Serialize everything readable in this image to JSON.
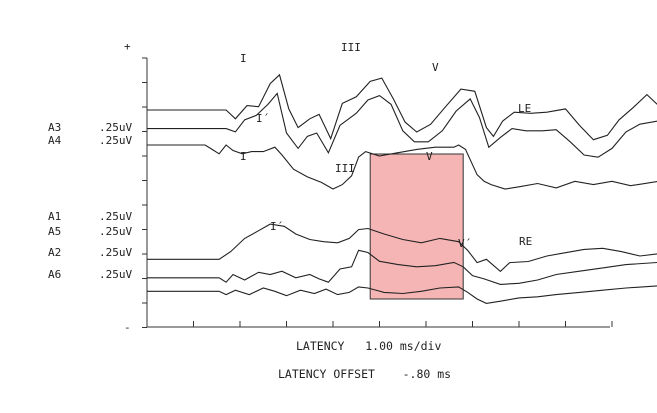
{
  "chart_data": {
    "type": "line",
    "title": "",
    "xlabel": "LATENCY   1.00 ms/div",
    "offset_label": "LATENCY OFFSET    -.80 ms",
    "y_top_marker": "+",
    "y_bottom_marker": "-",
    "x_divisions": 10,
    "x_unit_per_div_ms": 1.0,
    "latency_offset_ms": -0.8,
    "channels": [
      {
        "name": "A3",
        "scale": ".25uV"
      },
      {
        "name": "A4",
        "scale": ".25uV"
      },
      {
        "name": "A1",
        "scale": ".25uV"
      },
      {
        "name": "A5",
        "scale": ".25uV"
      },
      {
        "name": "A2",
        "scale": ".25uV"
      },
      {
        "name": "A6",
        "scale": ".25uV"
      }
    ],
    "group_labels": [
      {
        "text": "LE",
        "group": "upper"
      },
      {
        "text": "RE",
        "group": "lower"
      }
    ],
    "peak_labels_upper": [
      "I",
      "I´",
      "III",
      "V"
    ],
    "peak_labels_lower": [
      "I",
      "I´",
      "III",
      "V",
      "V´"
    ],
    "highlight_ms": [
      4.0,
      6.0
    ],
    "highlight_color": "#f4a3a3",
    "series": [
      {
        "values": [
          [
            -0.8,
            0
          ],
          [
            0.5,
            0
          ],
          [
            0.9,
            0
          ],
          [
            1.1,
            -0.8
          ],
          [
            1.35,
            0.4
          ],
          [
            1.6,
            0.3
          ],
          [
            1.85,
            2.4
          ],
          [
            2.05,
            3.2
          ],
          [
            2.25,
            0.1
          ],
          [
            2.45,
            -1.6
          ],
          [
            2.7,
            -0.8
          ],
          [
            2.9,
            -0.4
          ],
          [
            3.15,
            -2.6
          ],
          [
            3.4,
            0.6
          ],
          [
            3.7,
            1.2
          ],
          [
            4.0,
            2.6
          ],
          [
            4.25,
            2.9
          ],
          [
            4.5,
            1.0
          ],
          [
            4.75,
            -1.1
          ],
          [
            5.0,
            -2.0
          ],
          [
            5.3,
            -1.3
          ],
          [
            5.6,
            0.2
          ],
          [
            5.95,
            1.9
          ],
          [
            6.25,
            1.7
          ],
          [
            6.5,
            -1.6
          ],
          [
            6.65,
            -2.4
          ],
          [
            6.85,
            -1.0
          ],
          [
            7.1,
            -0.2
          ],
          [
            7.45,
            -0.3
          ],
          [
            7.8,
            -0.2
          ],
          [
            8.2,
            0.1
          ],
          [
            8.5,
            -1.4
          ],
          [
            8.8,
            -2.7
          ],
          [
            9.1,
            -2.3
          ],
          [
            9.35,
            -0.9
          ],
          [
            9.65,
            0.2
          ],
          [
            9.95,
            1.4
          ],
          [
            10.2,
            0.4
          ]
        ]
      },
      {
        "values": [
          [
            -0.8,
            -0.6
          ],
          [
            0.5,
            -0.6
          ],
          [
            0.9,
            -0.6
          ],
          [
            1.1,
            -0.9
          ],
          [
            1.3,
            0.2
          ],
          [
            1.55,
            0.6
          ],
          [
            1.8,
            1.6
          ],
          [
            2.0,
            2.6
          ],
          [
            2.2,
            -1.0
          ],
          [
            2.45,
            -2.4
          ],
          [
            2.65,
            -1.3
          ],
          [
            2.85,
            -1.0
          ],
          [
            3.1,
            -2.8
          ],
          [
            3.35,
            -0.3
          ],
          [
            3.7,
            0.8
          ],
          [
            3.95,
            2.0
          ],
          [
            4.2,
            2.4
          ],
          [
            4.45,
            1.6
          ],
          [
            4.7,
            -0.8
          ],
          [
            4.95,
            -1.8
          ],
          [
            5.25,
            -1.8
          ],
          [
            5.55,
            -0.8
          ],
          [
            5.85,
            1.0
          ],
          [
            6.15,
            2.1
          ],
          [
            6.35,
            0.4
          ],
          [
            6.55,
            -2.3
          ],
          [
            6.8,
            -1.4
          ],
          [
            7.05,
            -0.6
          ],
          [
            7.35,
            -0.8
          ],
          [
            7.7,
            -0.8
          ],
          [
            8.0,
            -0.7
          ],
          [
            8.3,
            -1.8
          ],
          [
            8.6,
            -3.0
          ],
          [
            8.9,
            -3.2
          ],
          [
            9.2,
            -2.4
          ],
          [
            9.5,
            -0.9
          ],
          [
            9.8,
            -0.2
          ],
          [
            10.2,
            0.1
          ]
        ]
      },
      {
        "values": [
          [
            -0.8,
            3.0
          ],
          [
            0.45,
            3.0
          ],
          [
            0.6,
            2.6
          ],
          [
            0.75,
            2.2
          ],
          [
            0.9,
            3.0
          ],
          [
            1.05,
            2.5
          ],
          [
            1.25,
            2.2
          ],
          [
            1.45,
            2.4
          ],
          [
            1.7,
            2.4
          ],
          [
            1.95,
            2.8
          ],
          [
            2.1,
            2.1
          ],
          [
            2.35,
            0.8
          ],
          [
            2.65,
            0.1
          ],
          [
            2.95,
            -0.4
          ],
          [
            3.2,
            -1.0
          ],
          [
            3.4,
            -0.6
          ],
          [
            3.6,
            0.2
          ],
          [
            3.75,
            1.9
          ],
          [
            3.9,
            2.4
          ],
          [
            4.2,
            2.0
          ],
          [
            4.6,
            2.3
          ],
          [
            5.0,
            2.6
          ],
          [
            5.4,
            2.8
          ],
          [
            5.8,
            2.8
          ],
          [
            5.9,
            3.0
          ],
          [
            6.05,
            2.6
          ],
          [
            6.3,
            0.3
          ],
          [
            6.45,
            -0.3
          ],
          [
            6.6,
            -0.6
          ],
          [
            6.9,
            -1.0
          ],
          [
            7.2,
            -0.8
          ],
          [
            7.6,
            -0.5
          ],
          [
            8.0,
            -0.9
          ],
          [
            8.4,
            -0.3
          ],
          [
            8.8,
            -0.6
          ],
          [
            9.2,
            -0.3
          ],
          [
            9.6,
            -0.7
          ],
          [
            10.2,
            -0.3
          ]
        ]
      },
      {
        "values": [
          [
            -0.8,
            -1.3
          ],
          [
            0.45,
            -1.3
          ],
          [
            0.75,
            -1.3
          ],
          [
            1.0,
            -0.6
          ],
          [
            1.3,
            0.6
          ],
          [
            1.6,
            1.3
          ],
          [
            1.85,
            1.9
          ],
          [
            2.15,
            1.7
          ],
          [
            2.4,
            1.0
          ],
          [
            2.7,
            0.5
          ],
          [
            3.0,
            0.3
          ],
          [
            3.3,
            0.2
          ],
          [
            3.55,
            0.6
          ],
          [
            3.75,
            1.4
          ],
          [
            3.95,
            1.5
          ],
          [
            4.3,
            1.0
          ],
          [
            4.7,
            0.5
          ],
          [
            5.1,
            0.2
          ],
          [
            5.5,
            0.6
          ],
          [
            5.9,
            0.3
          ],
          [
            6.1,
            -0.5
          ],
          [
            6.3,
            -1.6
          ],
          [
            6.5,
            -1.3
          ],
          [
            6.8,
            -2.4
          ],
          [
            7.0,
            -1.6
          ],
          [
            7.4,
            -1.5
          ],
          [
            7.8,
            -1.0
          ],
          [
            8.2,
            -0.7
          ],
          [
            8.6,
            -0.4
          ],
          [
            9.0,
            -0.3
          ],
          [
            9.4,
            -0.6
          ],
          [
            9.8,
            -1.0
          ],
          [
            10.2,
            -0.8
          ]
        ]
      },
      {
        "values": [
          [
            -0.8,
            -1.8
          ],
          [
            0.45,
            -1.8
          ],
          [
            0.75,
            -1.8
          ],
          [
            0.9,
            -2.2
          ],
          [
            1.05,
            -1.5
          ],
          [
            1.3,
            -2.0
          ],
          [
            1.6,
            -1.3
          ],
          [
            1.85,
            -1.5
          ],
          [
            2.1,
            -1.2
          ],
          [
            2.4,
            -1.8
          ],
          [
            2.7,
            -1.5
          ],
          [
            2.9,
            -1.9
          ],
          [
            3.1,
            -2.2
          ],
          [
            3.35,
            -1.0
          ],
          [
            3.6,
            -0.8
          ],
          [
            3.75,
            0.7
          ],
          [
            3.95,
            0.5
          ],
          [
            4.2,
            -0.3
          ],
          [
            4.6,
            -0.6
          ],
          [
            5.0,
            -0.8
          ],
          [
            5.4,
            -0.7
          ],
          [
            5.8,
            -0.4
          ],
          [
            6.0,
            -0.8
          ],
          [
            6.2,
            -1.6
          ],
          [
            6.45,
            -1.9
          ],
          [
            6.8,
            -2.4
          ],
          [
            7.2,
            -2.3
          ],
          [
            7.6,
            -2.0
          ],
          [
            8.0,
            -1.5
          ],
          [
            8.5,
            -1.2
          ],
          [
            9.0,
            -0.9
          ],
          [
            9.5,
            -0.6
          ],
          [
            10.2,
            -0.4
          ]
        ]
      },
      {
        "values": [
          [
            -0.8,
            -2.3
          ],
          [
            0.45,
            -2.3
          ],
          [
            0.75,
            -2.3
          ],
          [
            0.9,
            -2.6
          ],
          [
            1.1,
            -2.2
          ],
          [
            1.4,
            -2.6
          ],
          [
            1.7,
            -2.0
          ],
          [
            1.95,
            -2.3
          ],
          [
            2.2,
            -2.7
          ],
          [
            2.5,
            -2.2
          ],
          [
            2.8,
            -2.5
          ],
          [
            3.05,
            -2.1
          ],
          [
            3.3,
            -2.6
          ],
          [
            3.55,
            -2.4
          ],
          [
            3.75,
            -1.9
          ],
          [
            3.95,
            -2.0
          ],
          [
            4.3,
            -2.4
          ],
          [
            4.7,
            -2.5
          ],
          [
            5.1,
            -2.3
          ],
          [
            5.5,
            -2.0
          ],
          [
            5.9,
            -1.9
          ],
          [
            6.1,
            -2.4
          ],
          [
            6.3,
            -3.0
          ],
          [
            6.5,
            -3.4
          ],
          [
            6.8,
            -3.2
          ],
          [
            7.2,
            -2.9
          ],
          [
            7.6,
            -2.8
          ],
          [
            8.0,
            -2.6
          ],
          [
            8.5,
            -2.4
          ],
          [
            9.0,
            -2.2
          ],
          [
            9.5,
            -2.0
          ],
          [
            10.2,
            -1.8
          ]
        ]
      }
    ]
  }
}
